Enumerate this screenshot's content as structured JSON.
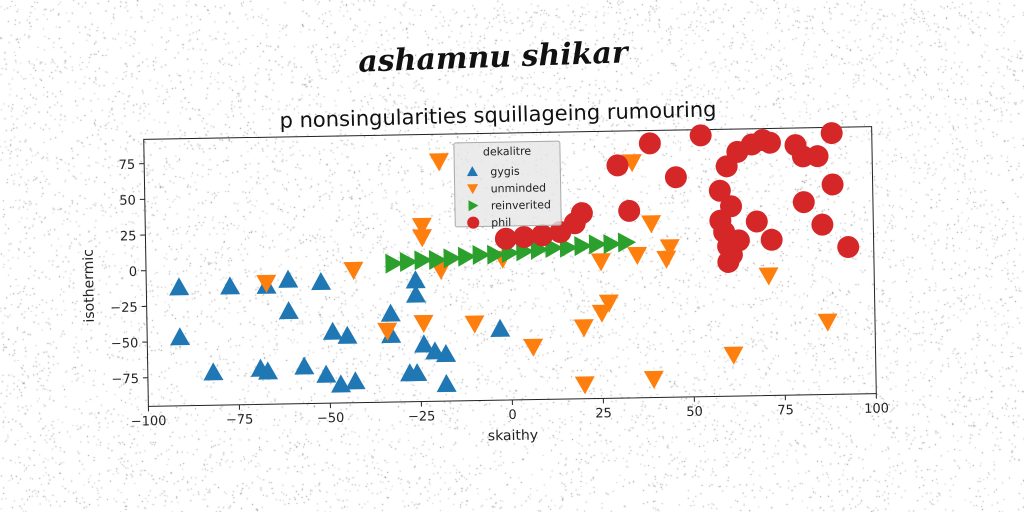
{
  "header": {
    "handwritten_title": "ashamnu shikar"
  },
  "chart_data": {
    "type": "scatter",
    "title": "p nonsingularities squillageing rumouring",
    "xlabel": "skaithy",
    "ylabel": "isothermic",
    "xlim": [
      -100,
      100
    ],
    "ylim": [
      -95,
      92
    ],
    "xticks": [
      "−100",
      "−75",
      "−50",
      "−25",
      "0",
      "25",
      "50",
      "75",
      "100"
    ],
    "xtick_values": [
      -100,
      -75,
      -50,
      -25,
      0,
      25,
      50,
      75,
      100
    ],
    "yticks": [
      "75",
      "50",
      "25",
      "0",
      "−25",
      "−50",
      "−75"
    ],
    "ytick_values": [
      75,
      50,
      25,
      0,
      -25,
      -50,
      -75
    ],
    "grid": false,
    "legend": {
      "title": "dekalitre",
      "placement": "top-center"
    },
    "series": [
      {
        "name": "gygis",
        "marker": "triangle-up",
        "color": "#1f77b4",
        "points": [
          [
            -91,
            -12
          ],
          [
            -91,
            -47
          ],
          [
            -82,
            -72
          ],
          [
            -77,
            -12
          ],
          [
            -69,
            -70
          ],
          [
            -67,
            -72
          ],
          [
            -67,
            -12
          ],
          [
            -61,
            -8
          ],
          [
            -61,
            -30
          ],
          [
            -57,
            -69
          ],
          [
            -52,
            -10
          ],
          [
            -51,
            -75
          ],
          [
            -49,
            -45
          ],
          [
            -47,
            -82
          ],
          [
            -45,
            -48
          ],
          [
            -43,
            -80
          ],
          [
            -33,
            -48
          ],
          [
            -33,
            -33
          ],
          [
            -28,
            -75
          ],
          [
            -26,
            -75
          ],
          [
            -26,
            -10
          ],
          [
            -26,
            -20
          ],
          [
            -24,
            -55
          ],
          [
            -21,
            -60
          ],
          [
            -18,
            -62
          ],
          [
            -18,
            -83
          ],
          [
            -3,
            -45
          ]
        ]
      },
      {
        "name": "unminded",
        "marker": "triangle-down",
        "color": "#ff7f0e",
        "points": [
          [
            -67,
            -10
          ],
          [
            -43,
            -2
          ],
          [
            -34,
            -45
          ],
          [
            -24,
            28
          ],
          [
            -24,
            20
          ],
          [
            -24,
            -40
          ],
          [
            -19,
            73
          ],
          [
            -19,
            -3
          ],
          [
            -10,
            -41
          ],
          [
            -2,
            4
          ],
          [
            6,
            -58
          ],
          [
            20,
            -85
          ],
          [
            20,
            -45
          ],
          [
            25,
            -35
          ],
          [
            25,
            1
          ],
          [
            27,
            -28
          ],
          [
            34,
            70
          ],
          [
            35,
            5
          ],
          [
            39,
            27
          ],
          [
            39,
            -82
          ],
          [
            43,
            2
          ],
          [
            44,
            10
          ],
          [
            61,
            -66
          ],
          [
            71,
            -11
          ],
          [
            87,
            -44
          ]
        ]
      },
      {
        "name": "reinverited",
        "marker": "triangle-right",
        "color": "#2ca02c",
        "points": [
          [
            -32,
            2
          ],
          [
            -28,
            3
          ],
          [
            -24,
            4
          ],
          [
            -20,
            4
          ],
          [
            -16,
            5
          ],
          [
            -12,
            6
          ],
          [
            -8,
            7
          ],
          [
            -4,
            7
          ],
          [
            0,
            8
          ],
          [
            4,
            9
          ],
          [
            8,
            10
          ],
          [
            12,
            11
          ],
          [
            16,
            11
          ],
          [
            20,
            12
          ],
          [
            24,
            13
          ],
          [
            28,
            13
          ],
          [
            32,
            14
          ]
        ]
      },
      {
        "name": "phil",
        "marker": "circle",
        "color": "#d62728",
        "points": [
          [
            -1,
            18
          ],
          [
            4,
            19
          ],
          [
            9,
            20
          ],
          [
            14,
            22
          ],
          [
            18,
            28
          ],
          [
            20,
            35
          ],
          [
            30,
            68
          ],
          [
            33,
            36
          ],
          [
            39,
            83
          ],
          [
            46,
            59
          ],
          [
            53,
            88
          ],
          [
            58,
            49
          ],
          [
            58,
            28
          ],
          [
            59,
            20
          ],
          [
            60,
            10
          ],
          [
            60,
            66
          ],
          [
            61,
            4
          ],
          [
            60,
            -1
          ],
          [
            61,
            38
          ],
          [
            63,
            14
          ],
          [
            63,
            76
          ],
          [
            67,
            81
          ],
          [
            68,
            27
          ],
          [
            70,
            84
          ],
          [
            72,
            82
          ],
          [
            72,
            14
          ],
          [
            79,
            80
          ],
          [
            81,
            72
          ],
          [
            81,
            40
          ],
          [
            85,
            72
          ],
          [
            86,
            24
          ],
          [
            89,
            88
          ],
          [
            89,
            52
          ],
          [
            93,
            8
          ]
        ]
      }
    ]
  }
}
